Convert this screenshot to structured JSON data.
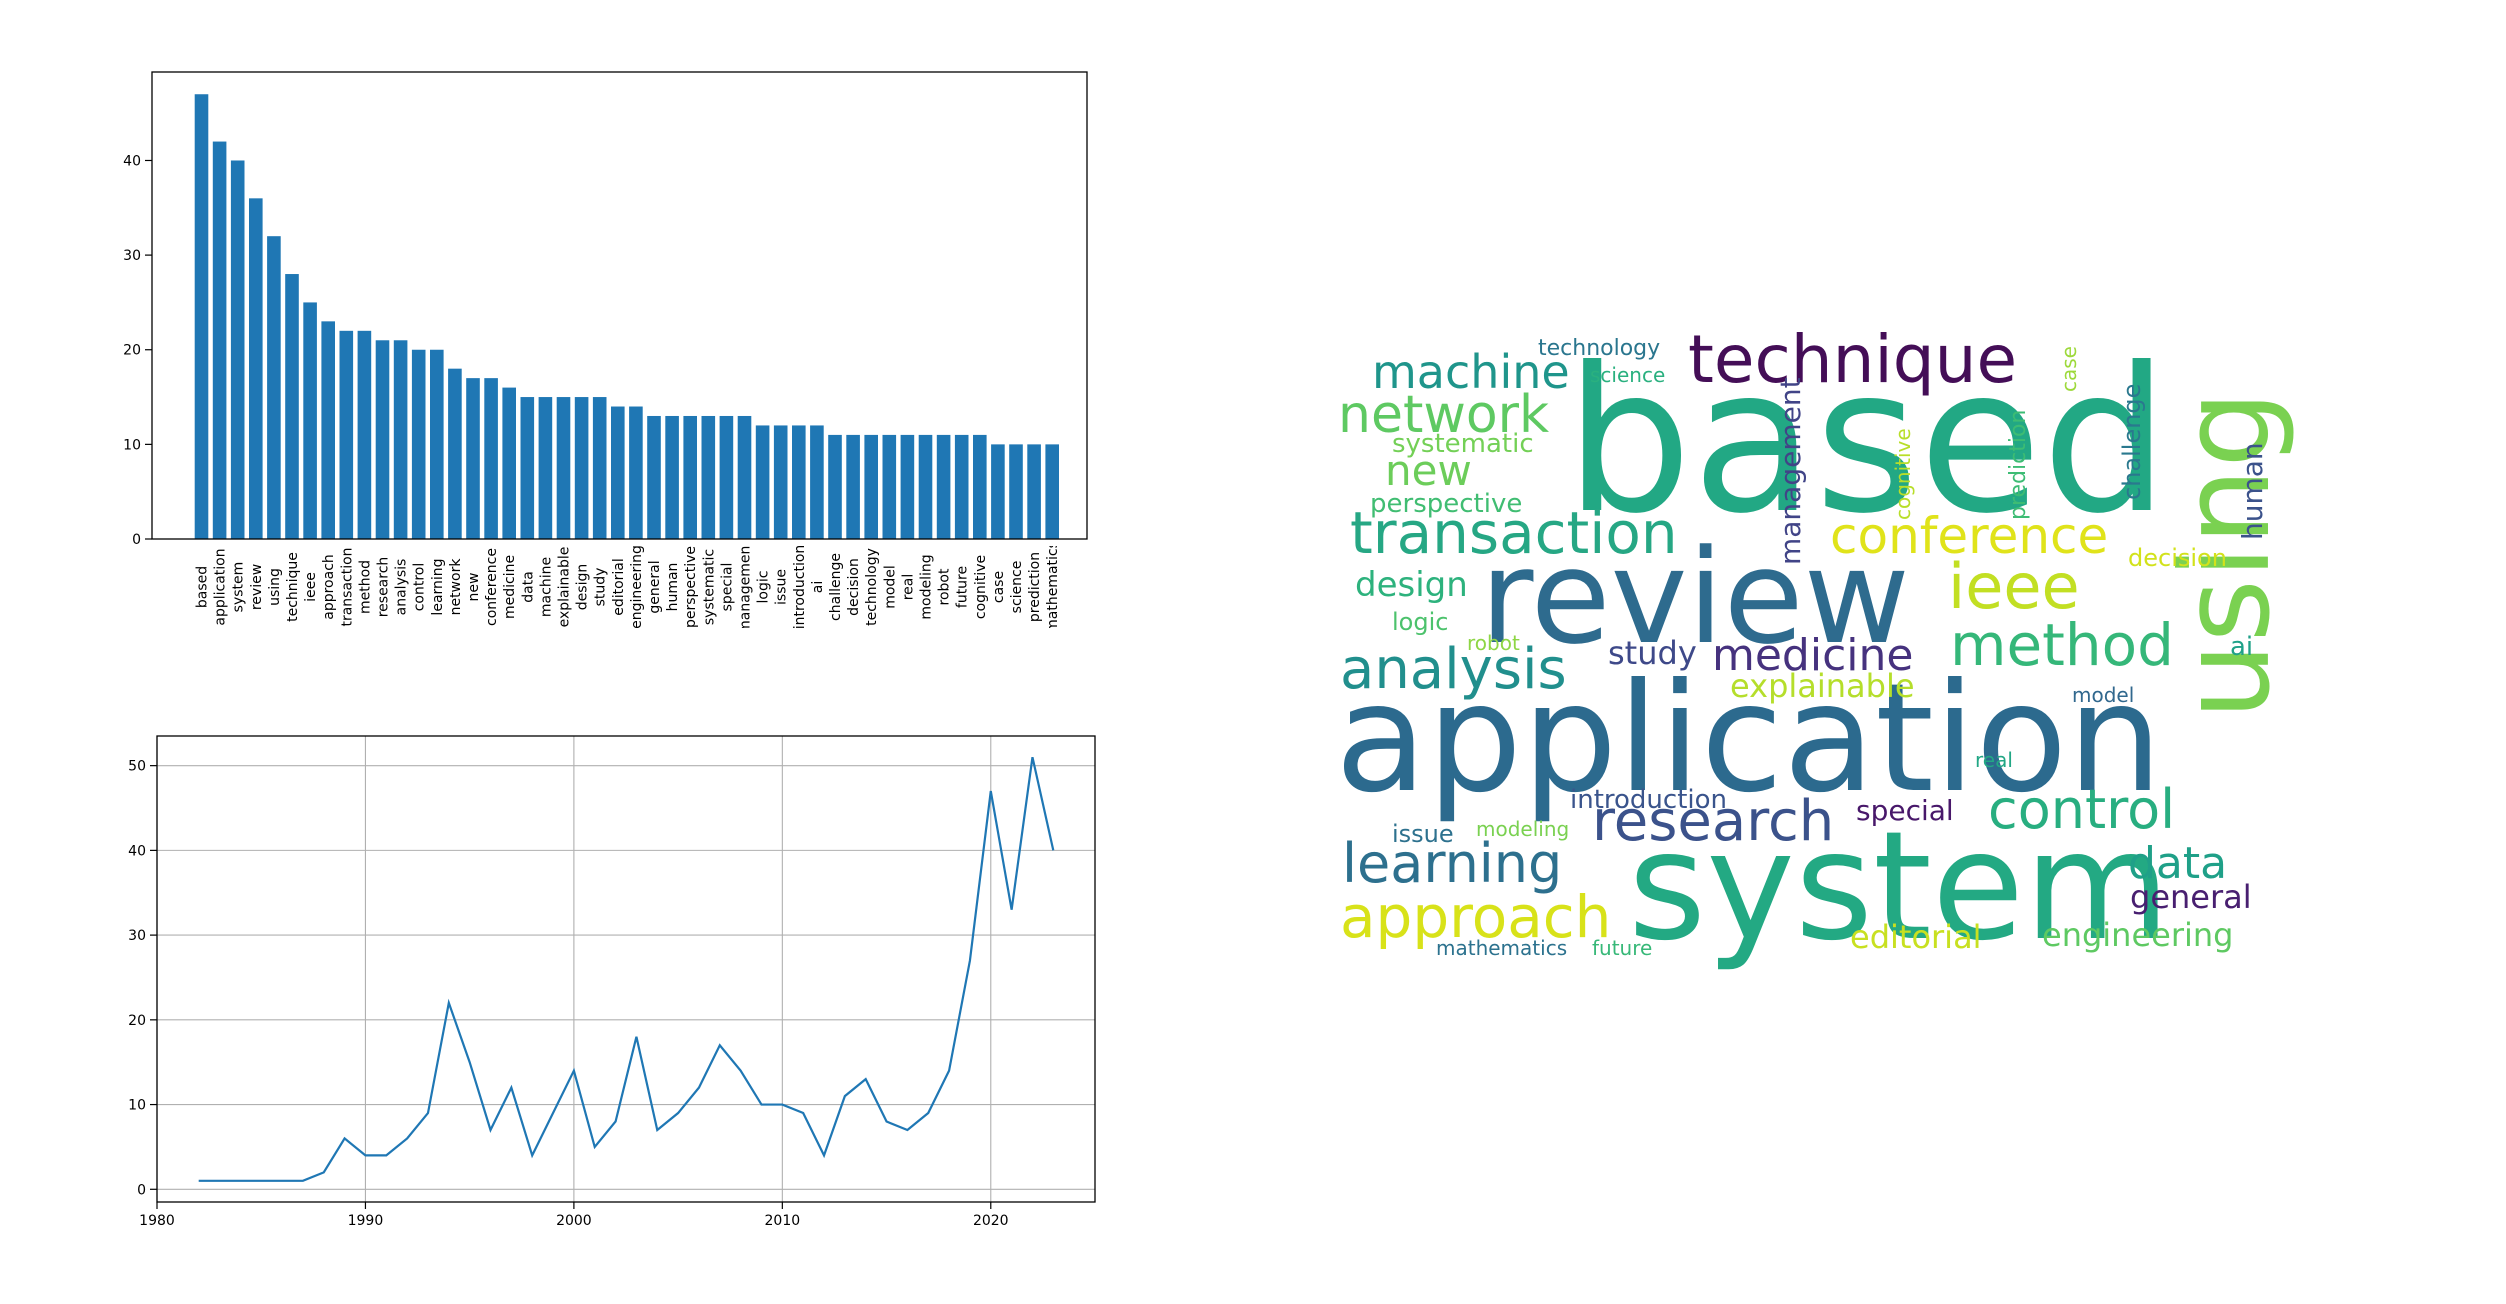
{
  "chart_data": [
    {
      "type": "bar",
      "categories": [
        "based",
        "application",
        "system",
        "review",
        "using",
        "technique",
        "ieee",
        "approach",
        "transaction",
        "method",
        "research",
        "analysis",
        "control",
        "learning",
        "network",
        "new",
        "conference",
        "medicine",
        "data",
        "machine",
        "explainable",
        "design",
        "study",
        "editorial",
        "engineering",
        "general",
        "human",
        "perspective",
        "systematic",
        "special",
        "management",
        "logic",
        "issue",
        "introduction",
        "ai",
        "challenge",
        "decision",
        "technology",
        "model",
        "real",
        "modeling",
        "robot",
        "future",
        "cognitive",
        "case",
        "science",
        "prediction",
        "mathematics"
      ],
      "values": [
        47,
        42,
        40,
        36,
        32,
        28,
        25,
        23,
        22,
        22,
        21,
        21,
        20,
        20,
        18,
        17,
        17,
        16,
        15,
        15,
        15,
        15,
        15,
        14,
        14,
        13,
        13,
        13,
        13,
        13,
        13,
        12,
        12,
        12,
        12,
        11,
        11,
        11,
        11,
        11,
        11,
        11,
        11,
        11,
        10,
        10,
        10,
        10
      ],
      "ylim": [
        0,
        49.35
      ],
      "yticks": [
        0,
        10,
        20,
        30,
        40
      ],
      "grid": false,
      "color": "#1f77b4"
    },
    {
      "type": "line",
      "x": [
        1982,
        1983,
        1984,
        1985,
        1986,
        1987,
        1988,
        1989,
        1990,
        1991,
        1992,
        1993,
        1994,
        1995,
        1996,
        1997,
        1998,
        1999,
        2000,
        2001,
        2002,
        2003,
        2004,
        2005,
        2006,
        2007,
        2008,
        2009,
        2010,
        2011,
        2012,
        2013,
        2014,
        2015,
        2016,
        2017,
        2018,
        2019,
        2020,
        2021,
        2022,
        2023
      ],
      "y": [
        1,
        1,
        1,
        1,
        1,
        1,
        2,
        6,
        4,
        4,
        6,
        9,
        22,
        15,
        7,
        12,
        4,
        9,
        14,
        5,
        8,
        18,
        7,
        9,
        12,
        17,
        14,
        10,
        10,
        9,
        4,
        11,
        13,
        8,
        7,
        9,
        14,
        27,
        47,
        33,
        51,
        40
      ],
      "xlim": [
        1980,
        2025
      ],
      "ylim": [
        -1.5,
        53.5
      ],
      "xticks": [
        1980,
        1990,
        2000,
        2010,
        2020
      ],
      "yticks": [
        0,
        10,
        20,
        30,
        40,
        50
      ],
      "grid": true,
      "color": "#1f77b4"
    },
    {
      "type": "wordcloud",
      "words": [
        {
          "text": "based",
          "color": "#22a884"
        },
        {
          "text": "application",
          "color": "#2c6a8e"
        },
        {
          "text": "system",
          "color": "#23a983"
        },
        {
          "text": "review",
          "color": "#2e6b8e"
        },
        {
          "text": "using",
          "color": "#7ad151"
        },
        {
          "text": "technique",
          "color": "#440e57"
        },
        {
          "text": "transaction",
          "color": "#26a784"
        },
        {
          "text": "machine",
          "color": "#1f958b"
        },
        {
          "text": "network",
          "color": "#5ec962"
        },
        {
          "text": "conference",
          "color": "#e0e31a"
        },
        {
          "text": "ieee",
          "color": "#c2df23"
        },
        {
          "text": "method",
          "color": "#35b779"
        },
        {
          "text": "analysis",
          "color": "#218f8d"
        },
        {
          "text": "medicine",
          "color": "#46327e"
        },
        {
          "text": "research",
          "color": "#3b528b"
        },
        {
          "text": "control",
          "color": "#28ae80"
        },
        {
          "text": "learning",
          "color": "#2d708e"
        },
        {
          "text": "data",
          "color": "#1fa088"
        },
        {
          "text": "approach",
          "color": "#d8e219"
        },
        {
          "text": "new",
          "color": "#6ccd5a"
        },
        {
          "text": "design",
          "color": "#2db27d"
        },
        {
          "text": "study",
          "color": "#3e4989"
        },
        {
          "text": "explainable",
          "color": "#b5de2b"
        },
        {
          "text": "general",
          "color": "#481f70"
        },
        {
          "text": "engineering",
          "color": "#5ec962"
        },
        {
          "text": "editorial",
          "color": "#c8e020"
        },
        {
          "text": "special",
          "color": "#48186a"
        },
        {
          "text": "introduction",
          "color": "#3a548c"
        },
        {
          "text": "decision",
          "color": "#d2e21b"
        },
        {
          "text": "perspective",
          "color": "#40bd72"
        },
        {
          "text": "systematic",
          "color": "#73d056"
        },
        {
          "text": "logic",
          "color": "#4cc26c"
        },
        {
          "text": "management",
          "color": "#414487"
        },
        {
          "text": "challenge",
          "color": "#2a788e"
        },
        {
          "text": "human",
          "color": "#3b528b"
        },
        {
          "text": "technology",
          "color": "#2a768e"
        },
        {
          "text": "prediction",
          "color": "#3dbc74"
        },
        {
          "text": "cognitive",
          "color": "#b8de29"
        },
        {
          "text": "science",
          "color": "#2ab07f"
        },
        {
          "text": "case",
          "color": "#9dd93b"
        },
        {
          "text": "issue",
          "color": "#2d718e"
        },
        {
          "text": "modeling",
          "color": "#7ad151"
        },
        {
          "text": "robot",
          "color": "#8ed645"
        },
        {
          "text": "ai",
          "color": "#1fa188"
        },
        {
          "text": "model",
          "color": "#31688e"
        },
        {
          "text": "real",
          "color": "#22a785"
        },
        {
          "text": "mathematics",
          "color": "#2c728e"
        },
        {
          "text": "future",
          "color": "#37b878"
        }
      ]
    }
  ]
}
